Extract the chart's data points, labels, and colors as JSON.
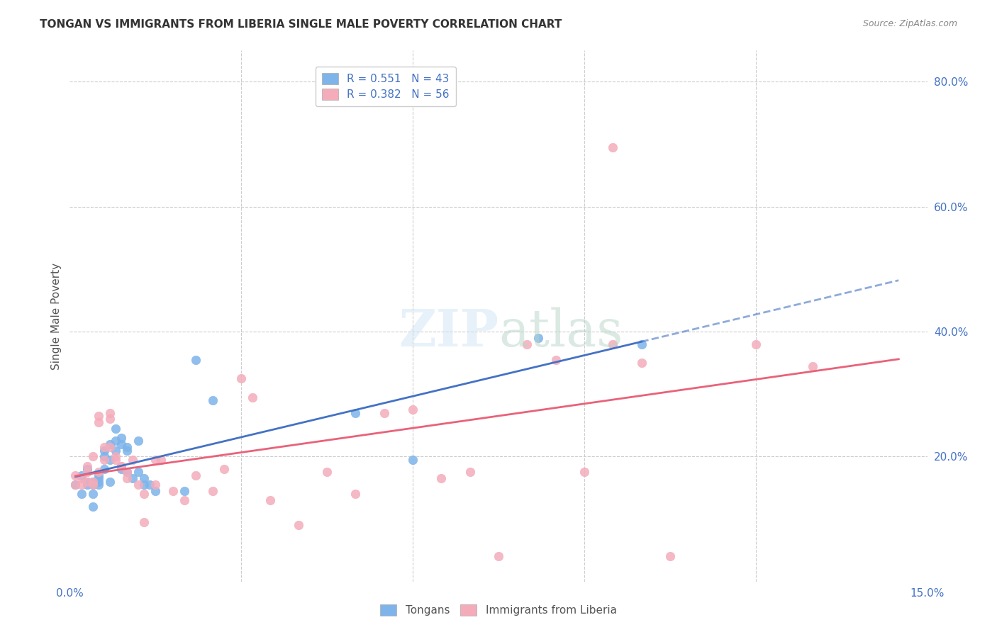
{
  "title": "TONGAN VS IMMIGRANTS FROM LIBERIA SINGLE MALE POVERTY CORRELATION CHART",
  "source": "Source: ZipAtlas.com",
  "ylabel": "Single Male Poverty",
  "xlim": [
    0.0,
    0.15
  ],
  "ylim": [
    0.0,
    0.85
  ],
  "ytick_labels": [
    "20.0%",
    "40.0%",
    "60.0%",
    "80.0%"
  ],
  "ytick_values": [
    0.2,
    0.4,
    0.6,
    0.8
  ],
  "legend_blue_label": "R = 0.551   N = 43",
  "legend_pink_label": "R = 0.382   N = 56",
  "blue_color": "#7EB4EA",
  "pink_color": "#F4ACBB",
  "blue_line_color": "#4472C4",
  "pink_line_color": "#E9627A",
  "tongans_x": [
    0.001,
    0.002,
    0.002,
    0.003,
    0.003,
    0.003,
    0.004,
    0.004,
    0.004,
    0.004,
    0.005,
    0.005,
    0.005,
    0.005,
    0.006,
    0.006,
    0.006,
    0.007,
    0.007,
    0.007,
    0.008,
    0.008,
    0.008,
    0.009,
    0.009,
    0.009,
    0.01,
    0.01,
    0.01,
    0.011,
    0.012,
    0.012,
    0.013,
    0.013,
    0.014,
    0.015,
    0.02,
    0.022,
    0.025,
    0.05,
    0.06,
    0.082,
    0.1
  ],
  "tongans_y": [
    0.155,
    0.14,
    0.17,
    0.155,
    0.18,
    0.16,
    0.155,
    0.16,
    0.14,
    0.12,
    0.17,
    0.165,
    0.16,
    0.155,
    0.18,
    0.21,
    0.2,
    0.22,
    0.195,
    0.16,
    0.21,
    0.245,
    0.225,
    0.23,
    0.22,
    0.18,
    0.215,
    0.21,
    0.175,
    0.165,
    0.225,
    0.175,
    0.165,
    0.155,
    0.155,
    0.145,
    0.145,
    0.355,
    0.29,
    0.27,
    0.195,
    0.39,
    0.38
  ],
  "liberia_x": [
    0.001,
    0.001,
    0.002,
    0.002,
    0.003,
    0.003,
    0.003,
    0.004,
    0.004,
    0.004,
    0.005,
    0.005,
    0.005,
    0.006,
    0.006,
    0.007,
    0.007,
    0.007,
    0.008,
    0.008,
    0.009,
    0.009,
    0.01,
    0.01,
    0.011,
    0.012,
    0.013,
    0.013,
    0.015,
    0.015,
    0.016,
    0.018,
    0.02,
    0.022,
    0.025,
    0.027,
    0.03,
    0.032,
    0.035,
    0.04,
    0.045,
    0.05,
    0.055,
    0.06,
    0.065,
    0.07,
    0.08,
    0.085,
    0.09,
    0.095,
    0.075,
    0.1,
    0.105,
    0.12,
    0.13,
    0.095
  ],
  "liberia_y": [
    0.155,
    0.17,
    0.155,
    0.165,
    0.16,
    0.175,
    0.185,
    0.16,
    0.155,
    0.2,
    0.265,
    0.255,
    0.175,
    0.215,
    0.195,
    0.26,
    0.27,
    0.215,
    0.195,
    0.2,
    0.185,
    0.185,
    0.175,
    0.165,
    0.195,
    0.155,
    0.14,
    0.095,
    0.195,
    0.155,
    0.195,
    0.145,
    0.13,
    0.17,
    0.145,
    0.18,
    0.325,
    0.295,
    0.13,
    0.09,
    0.175,
    0.14,
    0.27,
    0.275,
    0.165,
    0.175,
    0.38,
    0.355,
    0.175,
    0.38,
    0.04,
    0.35,
    0.04,
    0.38,
    0.345,
    0.695
  ]
}
